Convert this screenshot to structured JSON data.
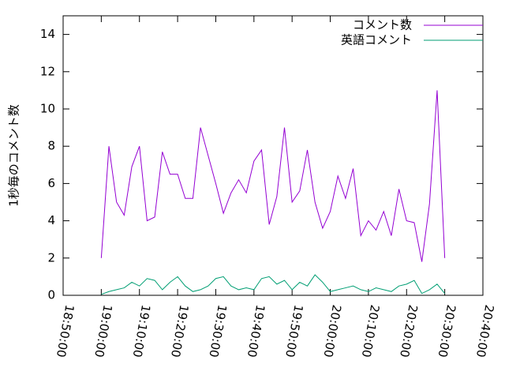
{
  "chart_data": {
    "type": "line",
    "ylabel": "1秒毎のコメント数",
    "x": [
      "19:00:00",
      "19:02:00",
      "19:04:00",
      "19:06:00",
      "19:08:00",
      "19:10:00",
      "19:12:00",
      "19:14:00",
      "19:16:00",
      "19:18:00",
      "19:20:00",
      "19:22:00",
      "19:24:00",
      "19:26:00",
      "19:28:00",
      "19:30:00",
      "19:32:00",
      "19:34:00",
      "19:36:00",
      "19:38:00",
      "19:40:00",
      "19:42:00",
      "19:44:00",
      "19:46:00",
      "19:48:00",
      "19:50:00",
      "19:52:00",
      "19:54:00",
      "19:56:00",
      "19:58:00",
      "20:00:00",
      "20:02:00",
      "20:04:00",
      "20:06:00",
      "20:08:00",
      "20:10:00",
      "20:12:00",
      "20:14:00",
      "20:16:00",
      "20:18:00",
      "20:20:00",
      "20:22:00",
      "20:24:00",
      "20:26:00",
      "20:28:00",
      "20:30:00"
    ],
    "series": [
      {
        "name": "コメント数",
        "color": "#9400d3",
        "values": [
          2.0,
          8.0,
          5.0,
          4.3,
          6.9,
          8.0,
          4.0,
          4.2,
          7.7,
          6.5,
          6.5,
          5.2,
          5.2,
          9.0,
          7.5,
          6.0,
          4.4,
          5.5,
          6.2,
          5.5,
          7.2,
          7.8,
          3.8,
          5.3,
          9.0,
          5.0,
          5.6,
          7.8,
          5.0,
          3.6,
          4.5,
          6.4,
          5.2,
          6.8,
          3.2,
          4.0,
          3.5,
          4.5,
          3.2,
          5.7,
          4.0,
          3.9,
          1.8,
          4.9,
          11.0,
          2.0
        ]
      },
      {
        "name": "英語コメント",
        "color": "#009e73",
        "values": [
          0.05,
          0.2,
          0.3,
          0.4,
          0.7,
          0.5,
          0.9,
          0.8,
          0.3,
          0.7,
          1.0,
          0.5,
          0.2,
          0.3,
          0.5,
          0.9,
          1.0,
          0.5,
          0.3,
          0.4,
          0.3,
          0.9,
          1.0,
          0.6,
          0.8,
          0.3,
          0.7,
          0.5,
          1.1,
          0.7,
          0.2,
          0.3,
          0.4,
          0.5,
          0.3,
          0.2,
          0.4,
          0.3,
          0.2,
          0.5,
          0.6,
          0.8,
          0.1,
          0.3,
          0.6,
          0.1
        ]
      }
    ],
    "xlim": [
      "18:50:00",
      "20:40:00"
    ],
    "xticks": [
      "18:50:00",
      "19:00:00",
      "19:10:00",
      "19:20:00",
      "19:30:00",
      "19:40:00",
      "19:50:00",
      "20:00:00",
      "20:10:00",
      "20:20:00",
      "20:30:00",
      "20:40:00"
    ],
    "ylim": [
      0,
      15
    ],
    "yticks": [
      0,
      2,
      4,
      6,
      8,
      10,
      12,
      14
    ],
    "legend": "top-right"
  }
}
